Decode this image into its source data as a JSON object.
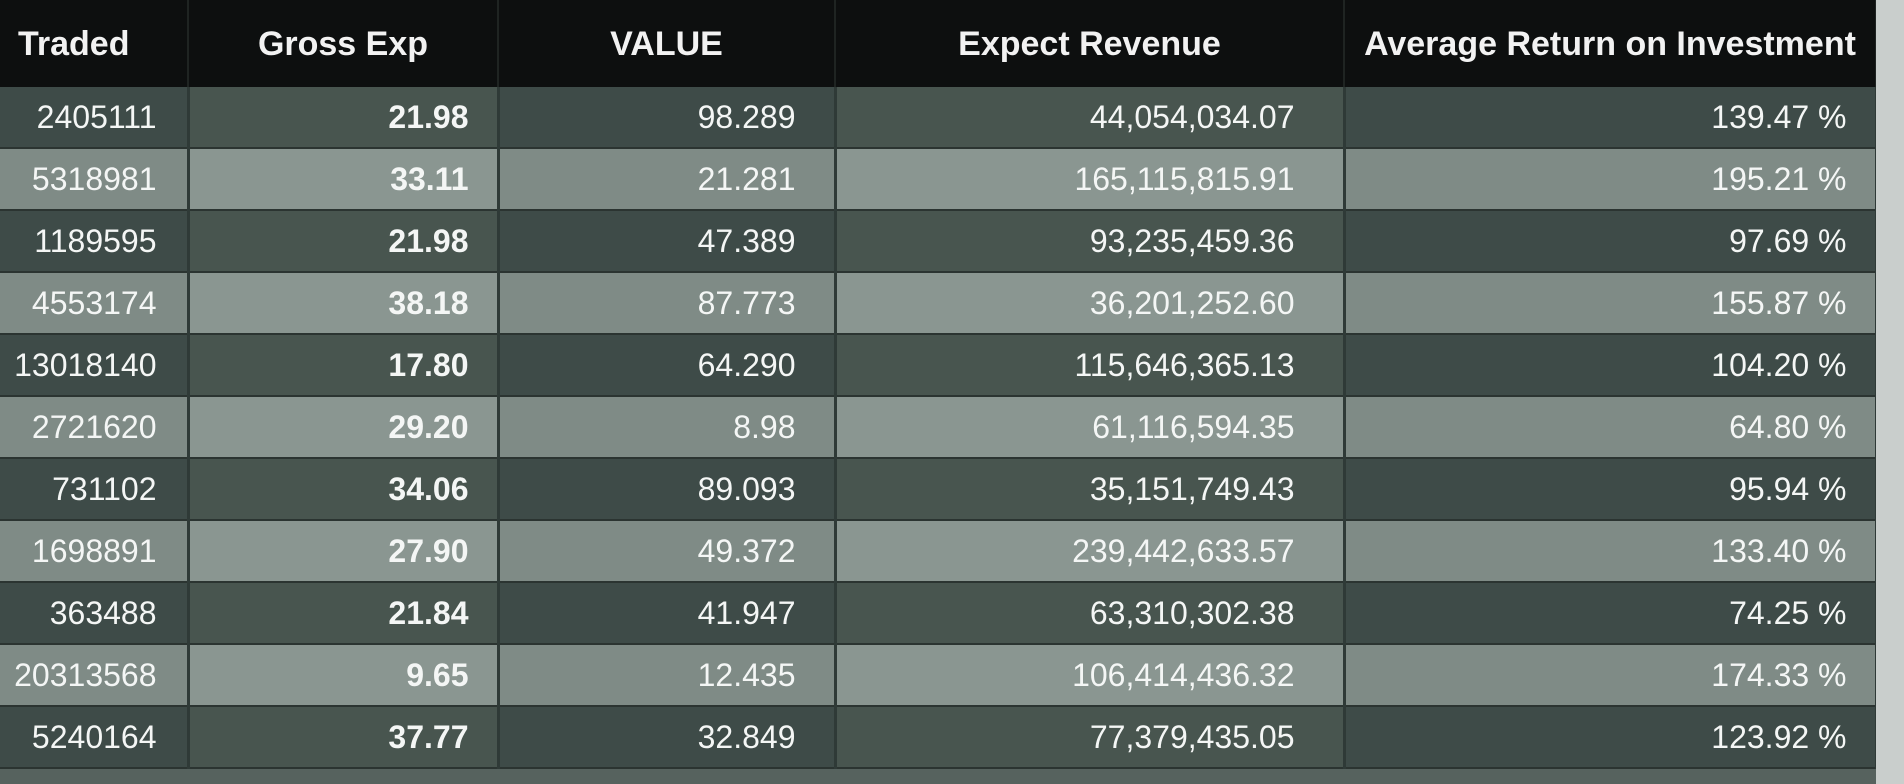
{
  "table": {
    "headers": [
      "Traded",
      "Gross Exp",
      "VALUE",
      "Expect Revenue",
      "Average Return on Investment"
    ],
    "rows": [
      [
        "2405111",
        "21.98",
        "98.289",
        "44,054,034.07",
        "139.47 %"
      ],
      [
        "5318981",
        "33.11",
        "21.281",
        "165,115,815.91",
        "195.21 %"
      ],
      [
        "1189595",
        "21.98",
        "47.389",
        "93,235,459.36",
        "97.69 %"
      ],
      [
        "4553174",
        "38.18",
        "87.773",
        "36,201,252.60",
        "155.87 %"
      ],
      [
        "13018140",
        "17.80",
        "64.290",
        "115,646,365.13",
        "104.20 %"
      ],
      [
        "2721620",
        "29.20",
        "8.98",
        "61,116,594.35",
        "64.80 %"
      ],
      [
        "731102",
        "34.06",
        "89.093",
        "35,151,749.43",
        "95.94 %"
      ],
      [
        "1698891",
        "27.90",
        "49.372",
        "239,442,633.57",
        "133.40 %"
      ],
      [
        "363488",
        "21.84",
        "41.947",
        "63,310,302.38",
        "74.25 %"
      ],
      [
        "20313568",
        "9.65",
        "12.435",
        "106,414,436.32",
        "174.33 %"
      ],
      [
        "5240164",
        "37.77",
        "32.849",
        "77,379,435.05",
        "123.92 %"
      ]
    ]
  }
}
